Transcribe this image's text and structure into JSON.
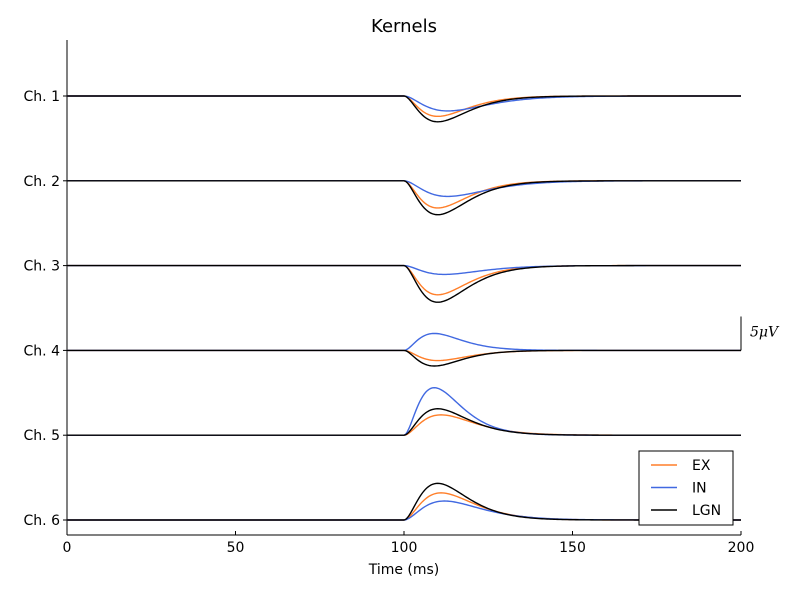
{
  "chart_data": {
    "type": "line",
    "title": "Kernels",
    "xlabel": "Time (ms)",
    "ylabel": "",
    "xlim": [
      0,
      200
    ],
    "x_ticks": [
      0,
      50,
      100,
      150,
      200
    ],
    "channel_labels": [
      "Ch. 1",
      "Ch. 2",
      "Ch. 3",
      "Ch. 4",
      "Ch. 5",
      "Ch. 6"
    ],
    "channel_spacing_uV": 12.5,
    "scale_bar": {
      "label": "5μV",
      "value_uV": 5
    },
    "legend": {
      "placement": "lower-right",
      "entries": [
        "EX",
        "IN",
        "LGN"
      ]
    },
    "grid": false,
    "onset_ms": 100,
    "series": [
      {
        "name": "EX",
        "color": "#ff7f2a"
      },
      {
        "name": "IN",
        "color": "#4169e1"
      },
      {
        "name": "LGN",
        "color": "#000000"
      }
    ],
    "kernels": {
      "EX": [
        {
          "peak_uV": -3.0,
          "t_peak_ms": 110
        },
        {
          "peak_uV": -4.0,
          "t_peak_ms": 110
        },
        {
          "peak_uV": -4.3,
          "t_peak_ms": 110
        },
        {
          "peak_uV": -1.5,
          "t_peak_ms": 110
        },
        {
          "peak_uV": 3.0,
          "t_peak_ms": 111
        },
        {
          "peak_uV": 4.0,
          "t_peak_ms": 111
        }
      ],
      "IN": [
        {
          "peak_uV": -2.2,
          "t_peak_ms": 113
        },
        {
          "peak_uV": -2.3,
          "t_peak_ms": 113
        },
        {
          "peak_uV": -1.3,
          "t_peak_ms": 112
        },
        {
          "peak_uV": 2.5,
          "t_peak_ms": 109
        },
        {
          "peak_uV": 7.0,
          "t_peak_ms": 109
        },
        {
          "peak_uV": 2.8,
          "t_peak_ms": 112
        }
      ],
      "LGN": [
        {
          "peak_uV": -3.8,
          "t_peak_ms": 110
        },
        {
          "peak_uV": -5.0,
          "t_peak_ms": 110
        },
        {
          "peak_uV": -5.4,
          "t_peak_ms": 110
        },
        {
          "peak_uV": -2.3,
          "t_peak_ms": 109
        },
        {
          "peak_uV": 3.9,
          "t_peak_ms": 110
        },
        {
          "peak_uV": 5.4,
          "t_peak_ms": 110
        }
      ]
    }
  }
}
